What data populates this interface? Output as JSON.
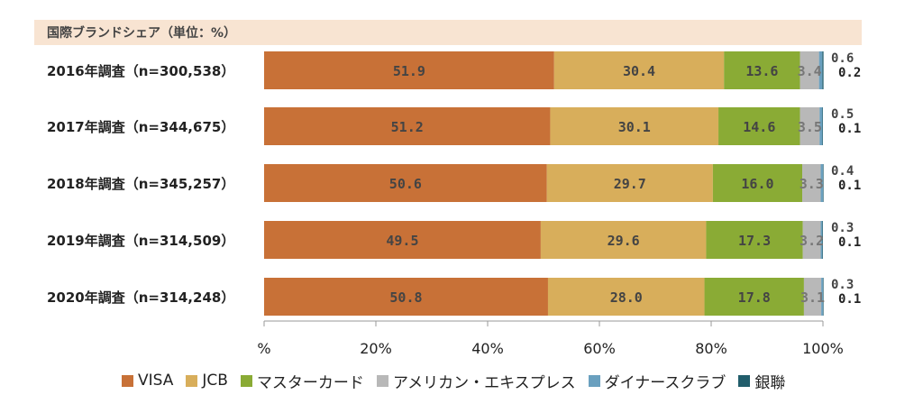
{
  "header": "国際ブランドシェア（単位：%）",
  "chart_data": {
    "type": "bar",
    "orientation": "horizontal",
    "stacked": true,
    "title": "国際ブランドシェア（単位：%）",
    "categories": [
      "2016年調査（n=300,538）",
      "2017年調査（n=344,675）",
      "2018年調査（n=345,257）",
      "2019年調査（n=314,509）",
      "2020年調査（n=314,248）"
    ],
    "series": [
      {
        "name": "VISA",
        "color": "#c87137",
        "values": [
          51.9,
          51.2,
          50.6,
          49.5,
          50.8
        ]
      },
      {
        "name": "JCB",
        "color": "#d8ae5b",
        "values": [
          30.4,
          30.1,
          29.7,
          29.6,
          28.0
        ]
      },
      {
        "name": "マスターカード",
        "color": "#8aab35",
        "values": [
          13.6,
          14.6,
          16.0,
          17.3,
          17.8
        ]
      },
      {
        "name": "アメリカン・エキスプレス",
        "color": "#b8b8b8",
        "values": [
          3.4,
          3.5,
          3.3,
          3.2,
          3.1
        ]
      },
      {
        "name": "ダイナースクラブ",
        "color": "#6aa0bf",
        "values": [
          0.6,
          0.5,
          0.4,
          0.3,
          0.3
        ]
      },
      {
        "name": "銀聯",
        "color": "#215d6b",
        "values": [
          0.2,
          0.1,
          0.1,
          0.1,
          0.1
        ]
      }
    ],
    "xaxis": {
      "ticks": [
        "%",
        "20%",
        "40%",
        "60%",
        "80%",
        "100%"
      ],
      "range": [
        0,
        100
      ]
    },
    "legend": "bottom",
    "grid": false
  }
}
